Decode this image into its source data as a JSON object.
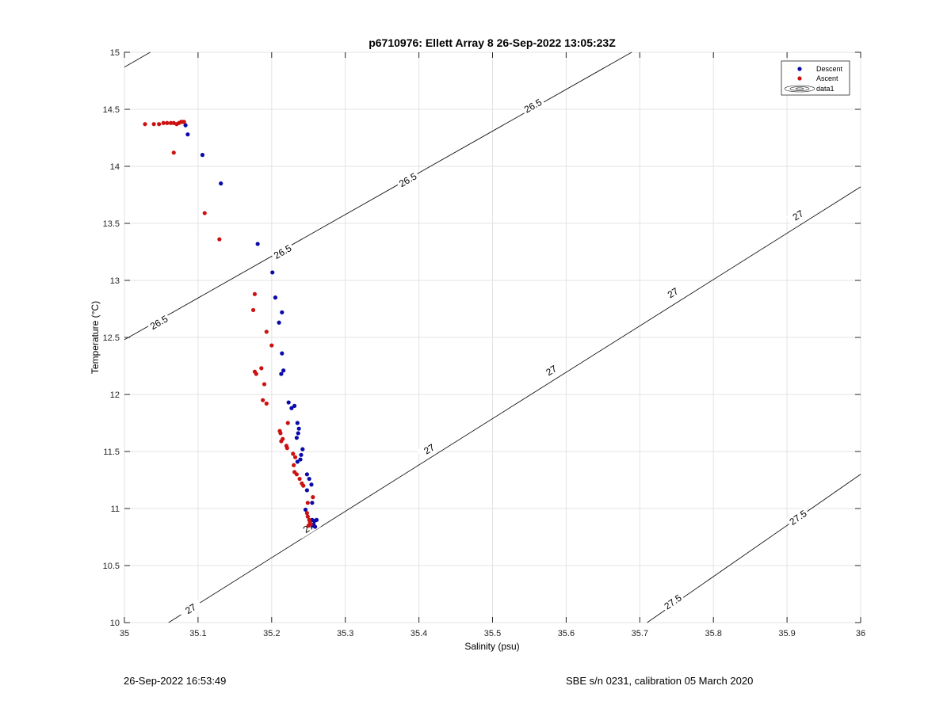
{
  "chart_data": {
    "type": "scatter",
    "title": "p6710976: Ellett Array 8 26-Sep-2022 13:05:23Z",
    "xlabel": "Salinity (psu)",
    "ylabel": "Temperature (°C)",
    "xlim": [
      35,
      36
    ],
    "ylim": [
      10,
      15
    ],
    "xticks": [
      "35",
      "35.1",
      "35.2",
      "35.3",
      "35.4",
      "35.5",
      "35.6",
      "35.7",
      "35.8",
      "35.9",
      "36"
    ],
    "yticks": [
      "10",
      "10.5",
      "11",
      "11.5",
      "12",
      "12.5",
      "13",
      "13.5",
      "14",
      "14.5",
      "15"
    ],
    "grid": true,
    "legend_position": "top-right",
    "legend": [
      "Descent",
      "Ascent",
      "data1"
    ],
    "series": [
      {
        "name": "Descent",
        "color": "#0a0aaa",
        "points": [
          [
            35.083,
            14.36
          ],
          [
            35.086,
            14.28
          ],
          [
            35.106,
            14.1
          ],
          [
            35.131,
            13.85
          ],
          [
            35.181,
            13.32
          ],
          [
            35.201,
            13.07
          ],
          [
            35.205,
            12.85
          ],
          [
            35.214,
            12.72
          ],
          [
            35.21,
            12.63
          ],
          [
            35.214,
            12.36
          ],
          [
            35.216,
            12.21
          ],
          [
            35.213,
            12.18
          ],
          [
            35.223,
            11.93
          ],
          [
            35.227,
            11.88
          ],
          [
            35.231,
            11.9
          ],
          [
            35.235,
            11.75
          ],
          [
            35.237,
            11.7
          ],
          [
            35.236,
            11.66
          ],
          [
            35.234,
            11.62
          ],
          [
            35.242,
            11.52
          ],
          [
            35.24,
            11.47
          ],
          [
            35.239,
            11.43
          ],
          [
            35.235,
            11.41
          ],
          [
            35.248,
            11.3
          ],
          [
            35.251,
            11.26
          ],
          [
            35.254,
            11.21
          ],
          [
            35.248,
            11.16
          ],
          [
            35.255,
            11.05
          ],
          [
            35.246,
            10.99
          ],
          [
            35.255,
            10.9
          ],
          [
            35.258,
            10.89
          ],
          [
            35.261,
            10.9
          ],
          [
            35.257,
            10.86
          ],
          [
            35.259,
            10.84
          ],
          [
            35.256,
            10.85
          ]
        ]
      },
      {
        "name": "Ascent",
        "color": "#cc1111",
        "points": [
          [
            35.028,
            14.37
          ],
          [
            35.04,
            14.37
          ],
          [
            35.047,
            14.37
          ],
          [
            35.053,
            14.38
          ],
          [
            35.058,
            14.38
          ],
          [
            35.063,
            14.38
          ],
          [
            35.067,
            14.38
          ],
          [
            35.071,
            14.37
          ],
          [
            35.074,
            14.38
          ],
          [
            35.077,
            14.39
          ],
          [
            35.079,
            14.39
          ],
          [
            35.081,
            14.39
          ],
          [
            35.067,
            14.12
          ],
          [
            35.109,
            13.59
          ],
          [
            35.129,
            13.36
          ],
          [
            35.177,
            12.88
          ],
          [
            35.175,
            12.74
          ],
          [
            35.193,
            12.55
          ],
          [
            35.2,
            12.43
          ],
          [
            35.186,
            12.23
          ],
          [
            35.177,
            12.2
          ],
          [
            35.179,
            12.18
          ],
          [
            35.19,
            12.09
          ],
          [
            35.188,
            11.95
          ],
          [
            35.193,
            11.92
          ],
          [
            35.211,
            11.68
          ],
          [
            35.212,
            11.66
          ],
          [
            35.222,
            11.75
          ],
          [
            35.215,
            11.61
          ],
          [
            35.213,
            11.59
          ],
          [
            35.22,
            11.55
          ],
          [
            35.221,
            11.53
          ],
          [
            35.229,
            11.48
          ],
          [
            35.232,
            11.45
          ],
          [
            35.23,
            11.38
          ],
          [
            35.231,
            11.32
          ],
          [
            35.234,
            11.3
          ],
          [
            35.238,
            11.26
          ],
          [
            35.241,
            11.22
          ],
          [
            35.243,
            11.2
          ],
          [
            35.256,
            11.1
          ],
          [
            35.249,
            11.05
          ],
          [
            35.248,
            10.96
          ],
          [
            35.249,
            10.93
          ],
          [
            35.251,
            10.9
          ],
          [
            35.252,
            10.88
          ],
          [
            35.253,
            10.86
          ],
          [
            35.25,
            10.85
          ]
        ]
      }
    ],
    "contours": [
      {
        "level": 26.5,
        "segments": [
          [
            [
              35.0,
              14.87
            ],
            [
              35.035,
              15.0
            ]
          ],
          [
            [
              35.0,
              12.48
            ],
            [
              35.689,
              15.0
            ]
          ]
        ],
        "labels": [
          {
            "text": "26.5",
            "x": 35.047,
            "y": 12.63
          },
          {
            "text": "26.5",
            "x": 35.215,
            "y": 13.25
          },
          {
            "text": "26.5",
            "x": 35.385,
            "y": 13.88
          },
          {
            "text": "26.5",
            "x": 35.555,
            "y": 14.53
          }
        ]
      },
      {
        "level": 27,
        "segments": [
          [
            [
              35.06,
              10.0
            ],
            [
              36.0,
              13.82
            ]
          ]
        ],
        "labels": [
          {
            "text": "27",
            "x": 35.09,
            "y": 10.12
          },
          {
            "text": "27",
            "x": 35.25,
            "y": 10.83
          },
          {
            "text": "27",
            "x": 35.414,
            "y": 11.52
          },
          {
            "text": "27",
            "x": 35.58,
            "y": 12.21
          },
          {
            "text": "27",
            "x": 35.745,
            "y": 12.89
          },
          {
            "text": "27",
            "x": 35.915,
            "y": 13.57
          }
        ]
      },
      {
        "level": 27.5,
        "segments": [
          [
            [
              35.71,
              10.0
            ],
            [
              36.0,
              11.3
            ]
          ]
        ],
        "labels": [
          {
            "text": "27.5",
            "x": 35.745,
            "y": 10.18
          },
          {
            "text": "27.5",
            "x": 35.915,
            "y": 10.92
          }
        ]
      }
    ]
  },
  "footer": {
    "left": "26-Sep-2022 16:53:49",
    "right": "SBE s/n 0231, calibration 05 March 2020"
  }
}
